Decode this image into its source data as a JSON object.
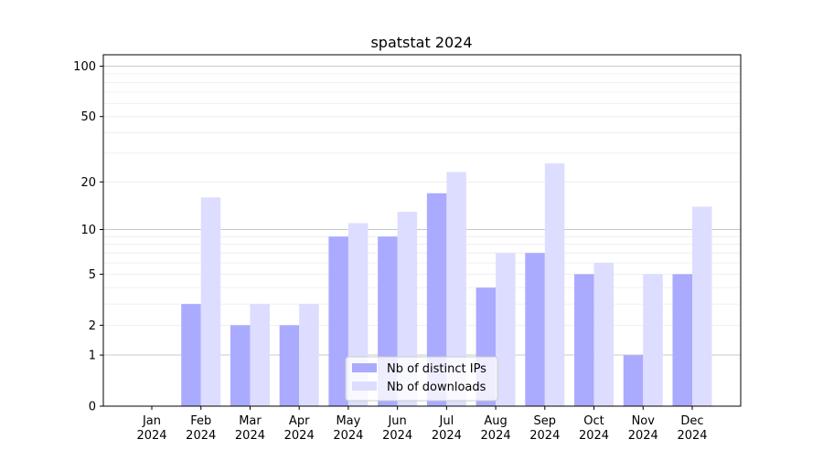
{
  "chart_data": {
    "type": "bar",
    "title": "spatstat 2024",
    "xlabel": "",
    "ylabel": "",
    "y_scale": "log(1+y)",
    "ylim": [
      0,
      117
    ],
    "grid": true,
    "legend_placement": "bottom-center",
    "categories": [
      "Jan\n2024",
      "Feb\n2024",
      "Mar\n2024",
      "Apr\n2024",
      "May\n2024",
      "Jun\n2024",
      "Jul\n2024",
      "Aug\n2024",
      "Sep\n2024",
      "Oct\n2024",
      "Nov\n2024",
      "Dec\n2024"
    ],
    "y_ticks": [
      0,
      1,
      2,
      5,
      10,
      20,
      50,
      100
    ],
    "series": [
      {
        "name": "Nb of distinct IPs",
        "color": "#aaaaff",
        "values": [
          0,
          3,
          2,
          2,
          9,
          9,
          17,
          4,
          7,
          5,
          1,
          5
        ]
      },
      {
        "name": "Nb of downloads",
        "color": "#ddddff",
        "values": [
          0,
          16,
          3,
          3,
          11,
          13,
          23,
          7,
          26,
          6,
          5,
          14
        ]
      }
    ]
  }
}
